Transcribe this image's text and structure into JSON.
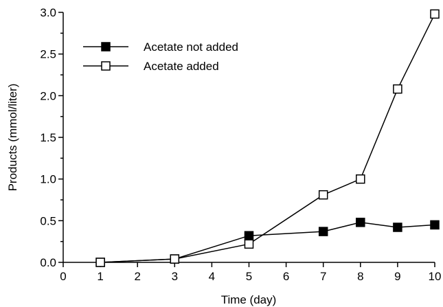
{
  "chart_data": {
    "type": "line",
    "xlabel": "Time (day)",
    "ylabel": "Products (mmol/liter)",
    "xlim": [
      0,
      10
    ],
    "ylim": [
      0,
      3.0
    ],
    "x_ticks": [
      "0",
      "1",
      "2",
      "3",
      "4",
      "5",
      "6",
      "7",
      "8",
      "9",
      "10"
    ],
    "y_ticks": [
      "0.0",
      "0.5",
      "1.0",
      "1.5",
      "2.0",
      "2.5",
      "3.0"
    ],
    "legend_position": "top-left",
    "grid": false,
    "series": [
      {
        "name": "Acetate not added",
        "marker": "filled-square",
        "x": [
          1,
          3,
          5,
          7,
          8,
          9,
          10
        ],
        "y": [
          0.0,
          0.04,
          0.32,
          0.37,
          0.48,
          0.42,
          0.45
        ]
      },
      {
        "name": "Acetate added",
        "marker": "open-square",
        "x": [
          1,
          3,
          5,
          7,
          8,
          9,
          10
        ],
        "y": [
          0.0,
          0.04,
          0.22,
          0.81,
          1.0,
          2.08,
          2.98
        ]
      }
    ]
  }
}
